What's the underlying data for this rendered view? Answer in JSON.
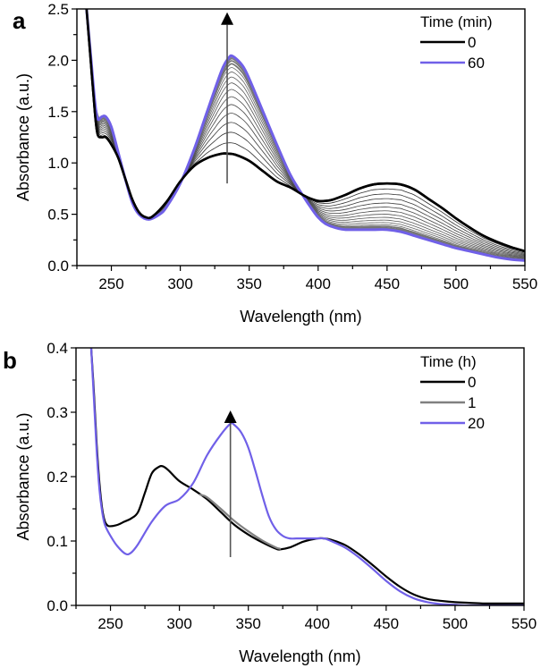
{
  "chart_data": [
    {
      "panel": "a",
      "type": "line",
      "title": "",
      "xlabel": "Wavelength (nm)",
      "ylabel": "Absorbance (a.u.)",
      "xlim": [
        225,
        550
      ],
      "ylim": [
        0,
        2.5
      ],
      "xticks": [
        250,
        300,
        350,
        400,
        450,
        500,
        550
      ],
      "yticks": [
        0.0,
        0.5,
        1.0,
        1.5,
        2.0,
        2.5
      ],
      "ytick_labels": [
        "0.0",
        "0.5",
        "1.0",
        "1.5",
        "2.0",
        "2.5"
      ],
      "grid": false,
      "legend": {
        "title": "Time (min)",
        "position": "top-right",
        "entries": [
          {
            "label": "0",
            "color": "#000000"
          },
          {
            "label": "60",
            "color": "#7060e8"
          }
        ]
      },
      "intermediate_series_count": 15,
      "intermediate_color": "#808080",
      "arrow": {
        "x": 334,
        "y_from": 0.8,
        "y_to": 2.45,
        "direction": "up"
      },
      "series": [
        {
          "name": "0",
          "color": "#000000",
          "x": [
            232,
            235,
            238,
            240,
            243,
            246,
            250,
            255,
            260,
            265,
            270,
            275,
            280,
            290,
            300,
            310,
            320,
            330,
            335,
            340,
            350,
            360,
            370,
            380,
            390,
            395,
            400,
            405,
            410,
            420,
            430,
            440,
            450,
            460,
            470,
            480,
            490,
            500,
            510,
            520,
            530,
            540,
            550
          ],
          "y": [
            2.5,
            2.0,
            1.5,
            1.28,
            1.25,
            1.25,
            1.18,
            1.05,
            0.85,
            0.65,
            0.52,
            0.47,
            0.48,
            0.62,
            0.82,
            0.97,
            1.05,
            1.09,
            1.09,
            1.08,
            1.02,
            0.92,
            0.82,
            0.76,
            0.68,
            0.65,
            0.63,
            0.63,
            0.64,
            0.69,
            0.75,
            0.79,
            0.8,
            0.79,
            0.74,
            0.65,
            0.56,
            0.46,
            0.37,
            0.29,
            0.23,
            0.18,
            0.14
          ]
        },
        {
          "name": "60",
          "color": "#7060e8",
          "x": [
            232,
            235,
            238,
            240,
            243,
            246,
            250,
            255,
            260,
            265,
            270,
            277,
            285,
            290,
            300,
            310,
            320,
            330,
            335,
            338,
            345,
            350,
            360,
            370,
            380,
            390,
            395,
            400,
            405,
            410,
            415,
            420,
            430,
            440,
            450,
            460,
            470,
            480,
            490,
            500,
            510,
            520,
            530,
            540,
            550
          ],
          "y": [
            2.5,
            2.05,
            1.6,
            1.43,
            1.45,
            1.45,
            1.35,
            1.1,
            0.85,
            0.62,
            0.5,
            0.45,
            0.5,
            0.57,
            0.8,
            1.13,
            1.52,
            1.9,
            2.02,
            2.04,
            1.95,
            1.82,
            1.5,
            1.18,
            0.88,
            0.66,
            0.56,
            0.47,
            0.41,
            0.38,
            0.36,
            0.35,
            0.35,
            0.35,
            0.35,
            0.33,
            0.29,
            0.25,
            0.21,
            0.17,
            0.14,
            0.11,
            0.08,
            0.06,
            0.05
          ]
        }
      ]
    },
    {
      "panel": "b",
      "type": "line",
      "title": "",
      "xlabel": "Wavelength (nm)",
      "ylabel": "Absorbance (a.u.)",
      "xlim": [
        225,
        550
      ],
      "ylim": [
        0,
        0.4
      ],
      "xticks": [
        250,
        300,
        350,
        400,
        450,
        500,
        550
      ],
      "yticks": [
        0.0,
        0.1,
        0.2,
        0.3,
        0.4
      ],
      "ytick_labels": [
        "0.0",
        "0.1",
        "0.2",
        "0.3",
        "0.4"
      ],
      "grid": false,
      "legend": {
        "title": "Time (h)",
        "position": "top-right",
        "entries": [
          {
            "label": "0",
            "color": "#000000"
          },
          {
            "label": "1",
            "color": "#808080"
          },
          {
            "label": "20",
            "color": "#7060e8"
          }
        ]
      },
      "arrow": {
        "x": 337,
        "y_from": 0.075,
        "y_to": 0.3,
        "direction": "up"
      },
      "series": [
        {
          "name": "0",
          "color": "#000000",
          "x": [
            236,
            238,
            240,
            242,
            244,
            246,
            248,
            250,
            255,
            260,
            265,
            270,
            275,
            280,
            285,
            288,
            292,
            300,
            310,
            320,
            330,
            340,
            350,
            360,
            370,
            373,
            380,
            390,
            400,
            405,
            410,
            420,
            430,
            440,
            450,
            460,
            470,
            480,
            490,
            500,
            510,
            520,
            530,
            540,
            550
          ],
          "y": [
            0.4,
            0.33,
            0.25,
            0.19,
            0.15,
            0.13,
            0.124,
            0.123,
            0.125,
            0.13,
            0.135,
            0.145,
            0.175,
            0.205,
            0.215,
            0.216,
            0.21,
            0.193,
            0.18,
            0.165,
            0.145,
            0.125,
            0.11,
            0.098,
            0.088,
            0.087,
            0.09,
            0.099,
            0.104,
            0.104,
            0.102,
            0.094,
            0.08,
            0.063,
            0.045,
            0.029,
            0.017,
            0.01,
            0.007,
            0.005,
            0.004,
            0.003,
            0.003,
            0.003,
            0.003
          ]
        },
        {
          "name": "1",
          "color": "#808080",
          "x": [
            315,
            320,
            330,
            340,
            350,
            360,
            370,
            373
          ],
          "y": [
            0.172,
            0.168,
            0.15,
            0.131,
            0.115,
            0.101,
            0.09,
            0.088
          ]
        },
        {
          "name": "20",
          "color": "#7060e8",
          "x": [
            236,
            238,
            240,
            242,
            244,
            246,
            250,
            255,
            261,
            265,
            270,
            280,
            290,
            300,
            310,
            320,
            330,
            337,
            340,
            345,
            350,
            355,
            360,
            365,
            370,
            375,
            380,
            385,
            390,
            400,
            405,
            410,
            420,
            430,
            440,
            450,
            460,
            470,
            480,
            490,
            500,
            510,
            550
          ],
          "y": [
            0.4,
            0.32,
            0.24,
            0.18,
            0.145,
            0.125,
            0.108,
            0.092,
            0.08,
            0.082,
            0.095,
            0.13,
            0.155,
            0.165,
            0.19,
            0.233,
            0.265,
            0.282,
            0.28,
            0.268,
            0.245,
            0.21,
            0.172,
            0.138,
            0.118,
            0.108,
            0.104,
            0.104,
            0.104,
            0.104,
            0.104,
            0.1,
            0.09,
            0.075,
            0.057,
            0.038,
            0.022,
            0.011,
            0.005,
            0.002,
            0.001,
            0.0,
            0.0
          ]
        }
      ]
    }
  ]
}
